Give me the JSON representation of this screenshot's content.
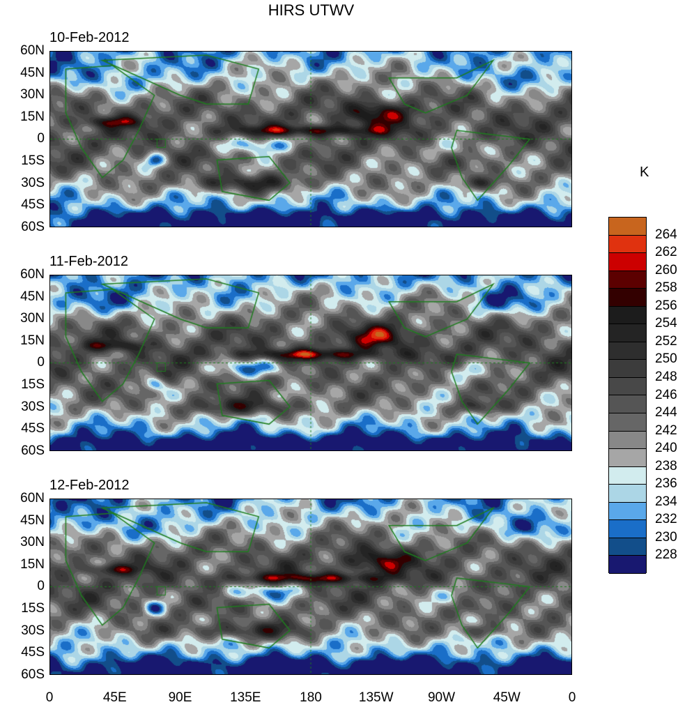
{
  "title": "HIRS UTWV",
  "panels": [
    {
      "date": "10-Feb-2012",
      "seed": 1
    },
    {
      "date": "11-Feb-2012",
      "seed": 2
    },
    {
      "date": "12-Feb-2012",
      "seed": 3
    }
  ],
  "lat_labels": [
    "60N",
    "45N",
    "30N",
    "15N",
    "0",
    "15S",
    "30S",
    "45S",
    "60S"
  ],
  "lon_labels": [
    "0",
    "45E",
    "90E",
    "135E",
    "180",
    "135W",
    "90W",
    "45W",
    "0"
  ],
  "colorbar": {
    "unit": "K",
    "labels": [
      "264",
      "262",
      "260",
      "258",
      "256",
      "254",
      "252",
      "250",
      "248",
      "246",
      "244",
      "242",
      "240",
      "238",
      "236",
      "234",
      "232",
      "230",
      "228"
    ],
    "colors": [
      "#c8651e",
      "#e0320f",
      "#cc0000",
      "#5c0000",
      "#330000",
      "#1c1c1c",
      "#242424",
      "#2e2e2e",
      "#3c3c3c",
      "#484848",
      "#555555",
      "#666666",
      "#888888",
      "#a6a6a6",
      "#d2ecee",
      "#acd6e6",
      "#5aa8ea",
      "#1a6ec8",
      "#124e8a",
      "#181870"
    ]
  },
  "coast_color": "#1e7d1e"
}
